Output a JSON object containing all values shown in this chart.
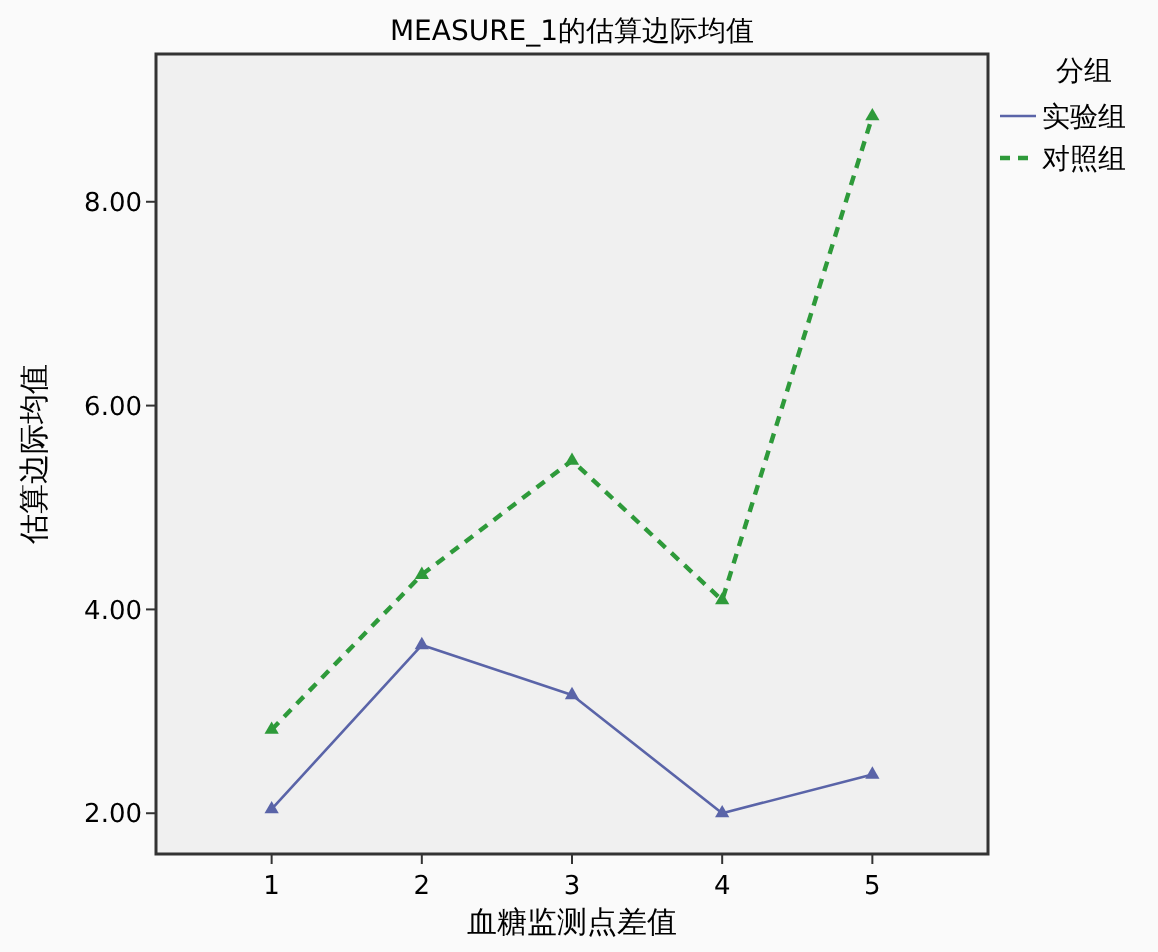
{
  "chart_data": {
    "type": "line",
    "title": "MEASURE_1的估算边际均值",
    "xlabel": "血糖监测点差值",
    "ylabel": "估算边际均值",
    "legend_title": "分组",
    "categories": [
      "1",
      "2",
      "3",
      "4",
      "5"
    ],
    "series": [
      {
        "name": "实验组",
        "color": "#5a64a8",
        "line_style": "solid",
        "values": [
          2.04,
          3.65,
          3.16,
          2.0,
          2.38
        ]
      },
      {
        "name": "对照组",
        "color": "#2e9a3a",
        "line_style": "dashed",
        "values": [
          2.82,
          4.34,
          5.46,
          4.09,
          8.84
        ]
      }
    ],
    "ylim": [
      1.6,
      9.45
    ],
    "yticks": [
      {
        "value": 2,
        "label": "2.00"
      },
      {
        "value": 4,
        "label": "4.00"
      },
      {
        "value": 6,
        "label": "6.00"
      },
      {
        "value": 8,
        "label": "8.00"
      }
    ],
    "marker": "triangle",
    "grid": false,
    "legend": "top right"
  }
}
